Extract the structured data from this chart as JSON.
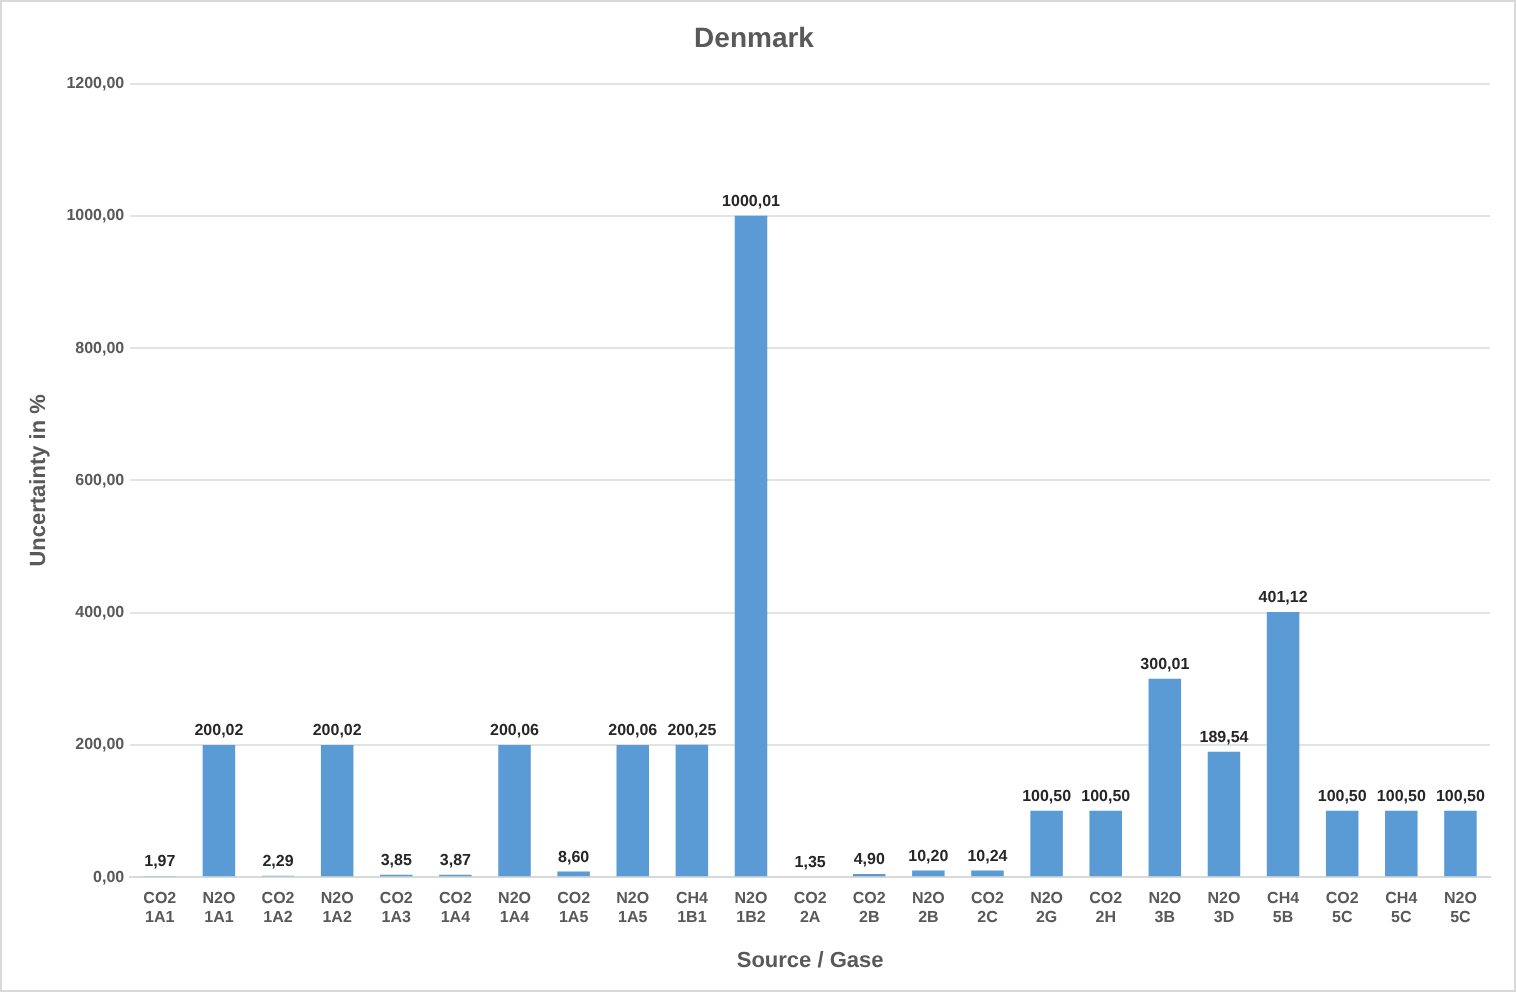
{
  "chart_data": {
    "type": "bar",
    "title": "Denmark",
    "xlabel": "Source / Gase",
    "ylabel": "Uncertainty in %",
    "categories": [
      "CO2\n1A1",
      "N2O\n1A1",
      "CO2\n1A2",
      "N2O\n1A2",
      "CO2\n1A3",
      "CO2\n1A4",
      "N2O\n1A4",
      "CO2\n1A5",
      "N2O\n1A5",
      "CH4\n1B1",
      "N2O\n1B2",
      "CO2\n2A",
      "CO2\n2B",
      "N2O\n2B",
      "CO2\n2C",
      "N2O\n2G",
      "CO2\n2H",
      "N2O\n3B",
      "N2O\n3D",
      "CH4\n5B",
      "CO2\n5C",
      "CH4\n5C",
      "N2O\n5C"
    ],
    "values": [
      1.97,
      200.02,
      2.29,
      200.02,
      3.85,
      3.87,
      200.06,
      8.6,
      200.06,
      200.25,
      1000.01,
      1.35,
      4.9,
      10.2,
      10.24,
      100.5,
      100.5,
      300.01,
      189.54,
      401.12,
      100.5,
      100.5,
      100.5
    ],
    "value_labels": [
      "1,97",
      "200,02",
      "2,29",
      "200,02",
      "3,85",
      "3,87",
      "200,06",
      "8,60",
      "200,06",
      "200,25",
      "1000,01",
      "1,35",
      "4,90",
      "10,20",
      "10,24",
      "100,50",
      "100,50",
      "300,01",
      "189,54",
      "401,12",
      "100,50",
      "100,50",
      "100,50"
    ],
    "color": "#5b9bd5",
    "ylim": [
      0,
      1200
    ],
    "yticks": [
      {
        "value": 0,
        "label": "0,00"
      },
      {
        "value": 200,
        "label": "200,00"
      },
      {
        "value": 400,
        "label": "400,00"
      },
      {
        "value": 600,
        "label": "600,00"
      },
      {
        "value": 800,
        "label": "800,00"
      },
      {
        "value": 1000,
        "label": "1000,00"
      },
      {
        "value": 1200,
        "label": "1200,00"
      }
    ],
    "grid": "y"
  }
}
